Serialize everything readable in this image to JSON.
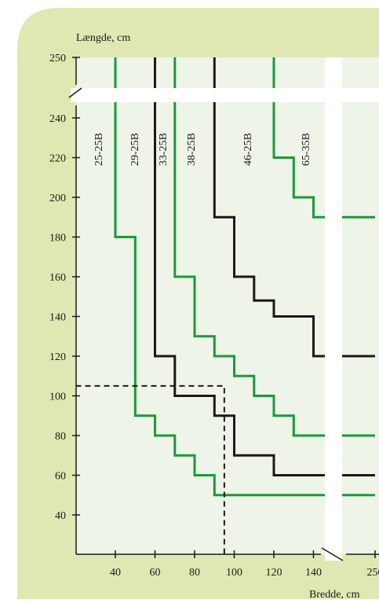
{
  "chart_data": {
    "type": "line",
    "ylabel": "Længde, cm",
    "xlabel": "Bredde, cm",
    "x_axis": {
      "range": [
        20,
        250
      ],
      "break": [
        145,
        245
      ],
      "ticks": [
        40,
        60,
        80,
        100,
        120,
        140,
        250
      ]
    },
    "y_axis": {
      "range": [
        25,
        250
      ],
      "break": [
        240,
        248
      ],
      "ticks": [
        40,
        60,
        80,
        100,
        120,
        140,
        160,
        180,
        200,
        220,
        240,
        250
      ]
    },
    "series": [
      {
        "name": "25-25B",
        "color": "#1a9a3a",
        "points": [
          [
            40,
            250
          ],
          [
            40,
            180
          ],
          [
            50,
            180
          ],
          [
            50,
            90
          ],
          [
            60,
            90
          ],
          [
            60,
            80
          ],
          [
            70,
            80
          ],
          [
            70,
            70
          ],
          [
            80,
            70
          ],
          [
            80,
            60
          ],
          [
            90,
            60
          ],
          [
            90,
            50
          ],
          [
            250,
            50
          ]
        ]
      },
      {
        "name": "29-25B",
        "color": "#1a1a1a",
        "points": [
          [
            60,
            250
          ],
          [
            60,
            120
          ],
          [
            70,
            120
          ],
          [
            70,
            100
          ],
          [
            90,
            100
          ],
          [
            90,
            90
          ],
          [
            100,
            90
          ],
          [
            100,
            70
          ],
          [
            120,
            70
          ],
          [
            120,
            60
          ],
          [
            250,
            60
          ]
        ]
      },
      {
        "name": "33-25B",
        "color": "#1a9a3a",
        "points": [
          [
            70,
            250
          ],
          [
            70,
            160
          ],
          [
            80,
            160
          ],
          [
            80,
            130
          ],
          [
            90,
            130
          ],
          [
            90,
            120
          ],
          [
            100,
            120
          ],
          [
            100,
            110
          ],
          [
            110,
            110
          ],
          [
            110,
            100
          ],
          [
            120,
            100
          ],
          [
            120,
            90
          ],
          [
            130,
            90
          ],
          [
            130,
            80
          ],
          [
            250,
            80
          ]
        ]
      },
      {
        "name": "38-25B",
        "color": "#1a1a1a",
        "points": [
          [
            90,
            250
          ],
          [
            90,
            190
          ],
          [
            100,
            190
          ],
          [
            100,
            160
          ],
          [
            110,
            160
          ],
          [
            110,
            148
          ],
          [
            120,
            148
          ],
          [
            120,
            140
          ],
          [
            140,
            140
          ],
          [
            140,
            120
          ],
          [
            250,
            120
          ]
        ]
      },
      {
        "name": "46-25B",
        "color": "#1a9a3a",
        "points": [
          [
            120,
            250
          ],
          [
            120,
            220
          ],
          [
            130,
            220
          ],
          [
            130,
            200
          ],
          [
            140,
            200
          ],
          [
            140,
            190
          ],
          [
            250,
            190
          ]
        ]
      },
      {
        "name": "65-35B",
        "color": "#1a9a3a",
        "points": []
      }
    ],
    "series_labels": [
      "25-25B",
      "29-25B",
      "33-25B",
      "38-25B",
      "46-25B",
      "65-35B"
    ],
    "reference": {
      "x": 95,
      "y": 105
    },
    "colors": {
      "panel": "#dfe8b2",
      "plot": "#eef4e8",
      "green": "#1a9a3a",
      "black": "#1a1a1a"
    }
  }
}
